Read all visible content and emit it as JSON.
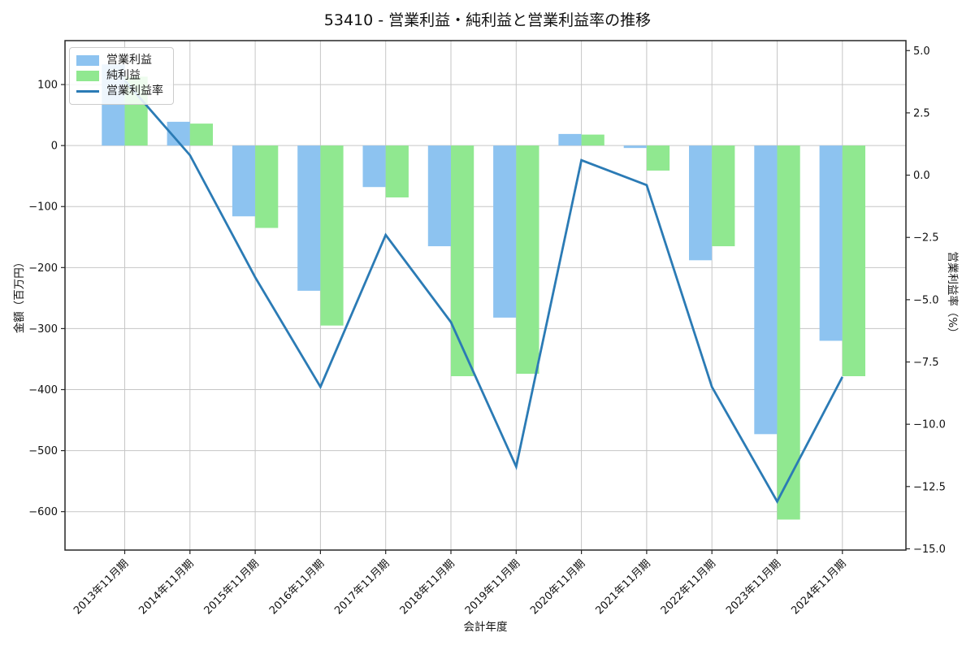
{
  "chart": {
    "title": "53410 - 営業利益・純利益と営業利益率の推移",
    "xlabel": "会計年度",
    "ylabel_left": "金額（百万円）",
    "ylabel_right": "営業利益率（%）"
  },
  "chart_data": {
    "type": "bar+line combo, dual y-axis",
    "categories": [
      "2013年11月期",
      "2014年11月期",
      "2015年11月期",
      "2016年11月期",
      "2017年11月期",
      "2018年11月期",
      "2019年11月期",
      "2020年11月期",
      "2021年11月期",
      "2022年11月期",
      "2023年11月期",
      "2024年11月期"
    ],
    "series": [
      {
        "name": "営業利益",
        "type": "bar",
        "axis": "left",
        "color": "#8dc3f0",
        "values": [
          133,
          39,
          -116,
          -238,
          -68,
          -165,
          -282,
          19,
          -4,
          -188,
          -473,
          -320
        ]
      },
      {
        "name": "純利益",
        "type": "bar",
        "axis": "left",
        "color": "#90e890",
        "values": [
          113,
          36,
          -135,
          -295,
          -85,
          -378,
          -374,
          18,
          -41,
          -165,
          -613,
          -378
        ]
      },
      {
        "name": "営業利益率",
        "type": "line",
        "axis": "right",
        "color": "#2b7bb5",
        "values": [
          3.8,
          0.8,
          -4.1,
          -8.5,
          -2.4,
          -5.9,
          -11.7,
          0.6,
          -0.4,
          -8.5,
          -13.1,
          -8.1
        ]
      }
    ],
    "left_axis": {
      "min": -663,
      "max": 172,
      "ticks": [
        100,
        0,
        -100,
        -200,
        -300,
        -400,
        -500,
        -600
      ],
      "tick_labels": [
        "100",
        "0",
        "−100",
        "−200",
        "−300",
        "−400",
        "−500",
        "−600"
      ]
    },
    "right_axis": {
      "min": -15.05,
      "max": 5.4,
      "ticks": [
        5.0,
        2.5,
        0.0,
        -2.5,
        -5.0,
        -7.5,
        -10.0,
        -12.5,
        -15.0
      ],
      "tick_labels": [
        "5.0",
        "2.5",
        "0.0",
        "−2.5",
        "−5.0",
        "−7.5",
        "−10.0",
        "−12.5",
        "−15.0"
      ]
    },
    "grid": true,
    "legend_position": "upper left",
    "grid_color": "#c6c6c6",
    "spine_color": "#262626"
  }
}
